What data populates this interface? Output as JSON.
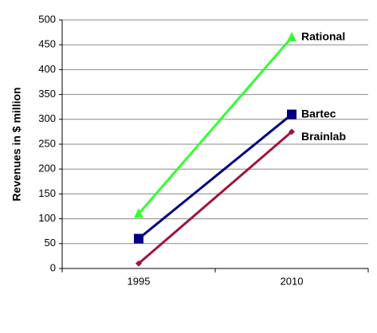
{
  "chart_data": {
    "type": "line",
    "y_label": "Revenues in $ million",
    "categories": [
      "1995",
      "2010"
    ],
    "series": [
      {
        "name": "Rational",
        "color": "#33ff33",
        "marker": "triangle",
        "values": [
          110,
          465
        ]
      },
      {
        "name": "Bartec",
        "color": "#000080",
        "marker": "square",
        "values": [
          60,
          310
        ]
      },
      {
        "name": "Brainlab",
        "color": "#a0143c",
        "marker": "diamond",
        "values": [
          10,
          275
        ]
      }
    ],
    "ylim": [
      0,
      500
    ],
    "yticks": [
      0,
      50,
      100,
      150,
      200,
      250,
      300,
      350,
      400,
      450,
      500
    ],
    "grid": true
  }
}
